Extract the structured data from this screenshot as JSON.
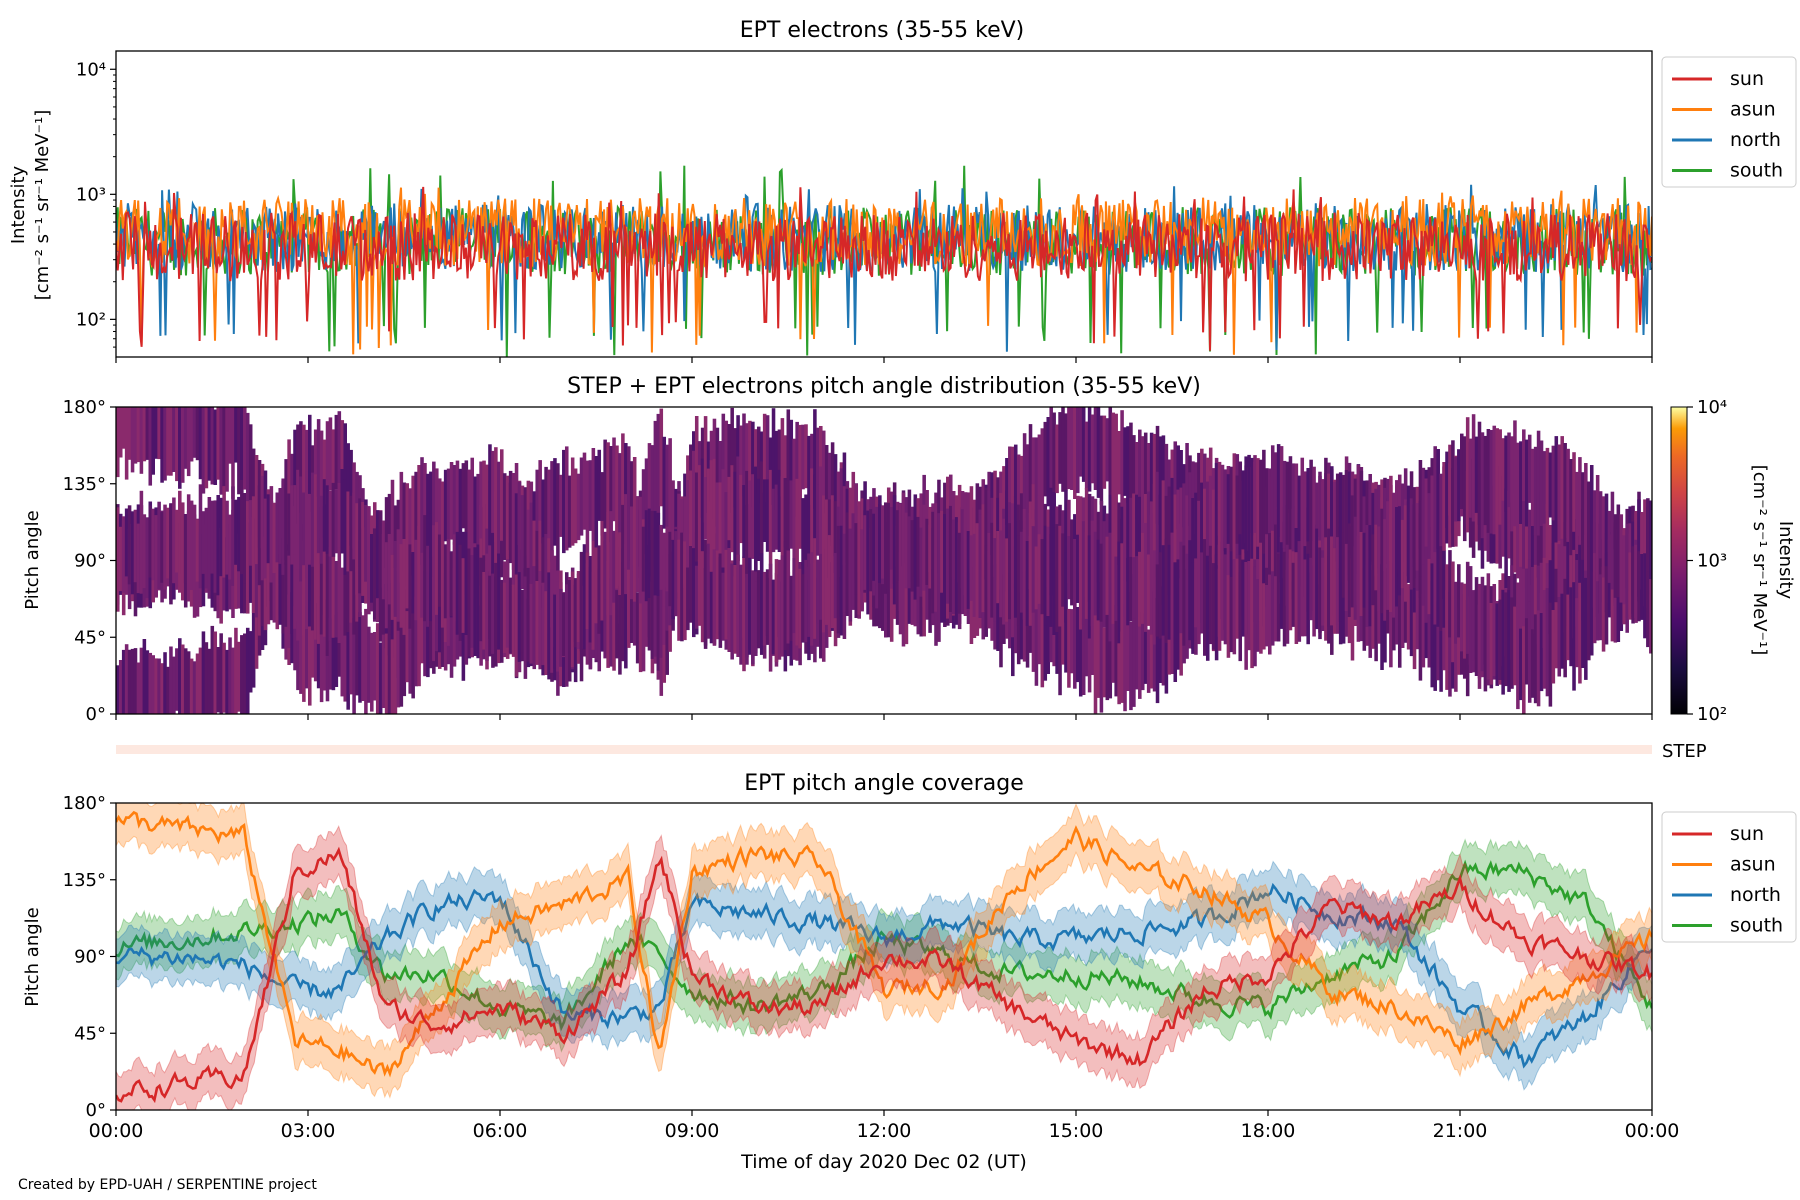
{
  "footer": {
    "credit": "Created by EPD-UAH / SERPENTINE project"
  },
  "colors": {
    "sun": "#d62728",
    "asun": "#ff7f0e",
    "north": "#1f77b4",
    "south": "#2ca02c",
    "pad_fill": "#6a1c6e",
    "step_bar": "#fde8e0"
  },
  "chart_data": [
    {
      "type": "line",
      "title": "EPT electrons (35-55 keV)",
      "ylabel": "Intensity",
      "ylabel_units": "[cm⁻² s⁻¹ sr⁻¹ MeV⁻¹]",
      "yscale": "log",
      "ylim": [
        50,
        14000
      ],
      "yticks": [
        "10²",
        "10³",
        "10⁴"
      ],
      "xlim_hours": [
        0,
        24
      ],
      "legend": "outside-right",
      "series": [
        {
          "name": "sun",
          "typical": 380,
          "range": [
            55,
            1000
          ]
        },
        {
          "name": "asun",
          "typical": 500,
          "range": [
            50,
            1000
          ]
        },
        {
          "name": "north",
          "typical": 450,
          "range": [
            55,
            1050
          ]
        },
        {
          "name": "south",
          "typical": 420,
          "range": [
            50,
            1500
          ]
        }
      ]
    },
    {
      "type": "heatmap",
      "title": "STEP + EPT electrons pitch angle distribution (35-55 keV)",
      "ylabel": "Pitch angle",
      "ylim": [
        0,
        180
      ],
      "yticks": [
        "0°",
        "45°",
        "90°",
        "135°",
        "180°"
      ],
      "xlim_hours": [
        0,
        24
      ],
      "colorbar": {
        "label": "Intensity",
        "units": "[cm⁻² s⁻¹ sr⁻¹ MeV⁻¹]",
        "scale": "log",
        "range": [
          100,
          10000
        ],
        "ticks": [
          "10²",
          "10³",
          "10⁴"
        ]
      }
    },
    {
      "type": "bar",
      "label": "STEP"
    },
    {
      "type": "line",
      "title": "EPT pitch angle coverage",
      "ylabel": "Pitch angle",
      "xlabel": "Time of day 2020 Dec 02 (UT)",
      "ylim": [
        0,
        180
      ],
      "yticks": [
        "0°",
        "45°",
        "90°",
        "135°",
        "180°"
      ],
      "xticks": [
        "00:00",
        "03:00",
        "06:00",
        "09:00",
        "12:00",
        "15:00",
        "18:00",
        "21:00",
        "00:00"
      ],
      "legend": "outside-right",
      "series": [
        {
          "name": "sun",
          "x": [
            0,
            1,
            2,
            2.8,
            3.5,
            4.2,
            5,
            6,
            7,
            8,
            8.5,
            9,
            10,
            11,
            12,
            13,
            14,
            15,
            16,
            17,
            18,
            19,
            20,
            21,
            22,
            23,
            24
          ],
          "y": [
            10,
            15,
            20,
            140,
            150,
            60,
            50,
            60,
            45,
            80,
            150,
            80,
            60,
            60,
            90,
            85,
            60,
            40,
            30,
            70,
            80,
            120,
            110,
            130,
            100,
            90,
            80
          ]
        },
        {
          "name": "asun",
          "x": [
            0,
            1,
            2,
            2.8,
            3.5,
            4.2,
            5,
            6,
            7,
            8,
            8.5,
            9,
            10,
            11,
            12,
            13,
            14,
            15,
            16,
            17,
            18,
            19,
            20,
            21,
            22,
            23,
            24
          ],
          "y": [
            170,
            165,
            160,
            40,
            35,
            20,
            60,
            110,
            120,
            135,
            30,
            140,
            150,
            145,
            70,
            75,
            130,
            160,
            140,
            130,
            110,
            70,
            60,
            40,
            60,
            80,
            100
          ]
        },
        {
          "name": "north",
          "x": [
            0,
            1,
            2,
            2.8,
            3.5,
            4.2,
            5,
            6,
            7,
            8,
            8.5,
            9,
            10,
            11,
            12,
            13,
            14,
            15,
            16,
            17,
            18,
            19,
            20,
            21,
            22,
            23,
            24
          ],
          "y": [
            90,
            90,
            85,
            70,
            70,
            100,
            120,
            125,
            55,
            55,
            60,
            120,
            115,
            110,
            100,
            110,
            100,
            100,
            105,
            110,
            130,
            115,
            110,
            60,
            30,
            55,
            100
          ]
        },
        {
          "name": "south",
          "x": [
            0,
            1,
            2,
            2.8,
            3.5,
            4.2,
            5,
            6,
            7,
            8,
            8.5,
            9,
            10,
            11,
            12,
            13,
            14,
            15,
            16,
            17,
            18,
            19,
            20,
            21,
            22,
            23,
            24
          ],
          "y": [
            95,
            100,
            105,
            110,
            115,
            80,
            80,
            60,
            50,
            100,
            90,
            70,
            60,
            70,
            100,
            90,
            80,
            80,
            75,
            65,
            60,
            80,
            90,
            140,
            140,
            120,
            60
          ]
        }
      ]
    }
  ]
}
